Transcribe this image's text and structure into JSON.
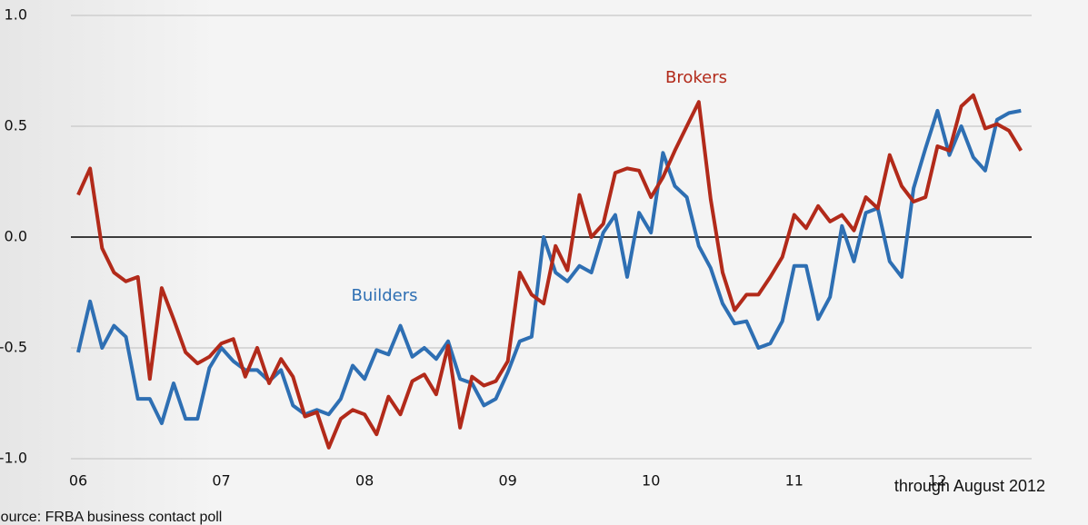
{
  "chart_data": {
    "type": "line",
    "categories": [
      "06",
      null,
      null,
      null,
      null,
      null,
      null,
      null,
      null,
      null,
      null,
      null,
      "07",
      null,
      null,
      null,
      null,
      null,
      null,
      null,
      null,
      null,
      null,
      null,
      "08",
      null,
      null,
      null,
      null,
      null,
      null,
      null,
      null,
      null,
      null,
      null,
      "09",
      null,
      null,
      null,
      null,
      null,
      null,
      null,
      null,
      null,
      null,
      null,
      "10",
      null,
      null,
      null,
      null,
      null,
      null,
      null,
      null,
      null,
      null,
      null,
      "11",
      null,
      null,
      null,
      null,
      null,
      null,
      null,
      null,
      null,
      null,
      null,
      "12",
      null,
      null,
      null,
      null,
      null,
      null,
      null
    ],
    "series": [
      {
        "name": "Builders",
        "color": "#2e6fb3",
        "values": [
          -0.52,
          -0.29,
          -0.5,
          -0.4,
          -0.45,
          -0.73,
          -0.73,
          -0.84,
          -0.66,
          -0.82,
          -0.82,
          -0.59,
          -0.5,
          -0.56,
          -0.6,
          -0.6,
          -0.65,
          -0.6,
          -0.76,
          -0.8,
          -0.78,
          -0.8,
          -0.73,
          -0.58,
          -0.64,
          -0.51,
          -0.53,
          -0.4,
          -0.54,
          -0.5,
          -0.55,
          -0.47,
          -0.64,
          -0.66,
          -0.76,
          -0.73,
          -0.61,
          -0.47,
          -0.45,
          0.0,
          -0.16,
          -0.2,
          -0.13,
          -0.16,
          0.02,
          0.1,
          -0.18,
          0.11,
          0.02,
          0.38,
          0.23,
          0.18,
          -0.04,
          -0.14,
          -0.3,
          -0.39,
          -0.38,
          -0.5,
          -0.48,
          -0.38,
          -0.13,
          -0.13,
          -0.37,
          -0.27,
          0.05,
          -0.11,
          0.11,
          0.13,
          -0.11,
          -0.18,
          0.22,
          0.4,
          0.57,
          0.37,
          0.5,
          0.36,
          0.3,
          0.53,
          0.56,
          0.57
        ]
      },
      {
        "name": "Brokers",
        "color": "#b22a1a",
        "values": [
          0.19,
          0.31,
          -0.05,
          -0.16,
          -0.2,
          -0.18,
          -0.64,
          -0.23,
          -0.37,
          -0.52,
          -0.57,
          -0.54,
          -0.48,
          -0.46,
          -0.63,
          -0.5,
          -0.66,
          -0.55,
          -0.63,
          -0.81,
          -0.79,
          -0.95,
          -0.82,
          -0.78,
          -0.8,
          -0.89,
          -0.72,
          -0.8,
          -0.65,
          -0.62,
          -0.71,
          -0.49,
          -0.86,
          -0.63,
          -0.67,
          -0.65,
          -0.56,
          -0.16,
          -0.26,
          -0.3,
          -0.04,
          -0.15,
          0.19,
          0.0,
          0.06,
          0.29,
          0.31,
          0.3,
          0.18,
          0.27,
          0.39,
          0.5,
          0.61,
          0.17,
          -0.16,
          -0.33,
          -0.26,
          -0.26,
          -0.18,
          -0.09,
          0.1,
          0.04,
          0.14,
          0.07,
          0.1,
          0.03,
          0.18,
          0.13,
          0.37,
          0.23,
          0.16,
          0.18,
          0.41,
          0.39,
          0.59,
          0.64,
          0.49,
          0.51,
          0.48,
          0.39
        ]
      }
    ],
    "ylim": [
      -1.0,
      1.0
    ],
    "yticks": [
      {
        "value": 1.0,
        "label": "1.0"
      },
      {
        "value": 0.5,
        "label": "0.5"
      },
      {
        "value": 0.0,
        "label": "0.0"
      },
      {
        "value": -0.5,
        "label": "-0.5"
      },
      {
        "value": -1.0,
        "label": "-1.0"
      }
    ],
    "grid": true,
    "note": "through August 2012",
    "source": "Source: FRBA business contact poll"
  }
}
